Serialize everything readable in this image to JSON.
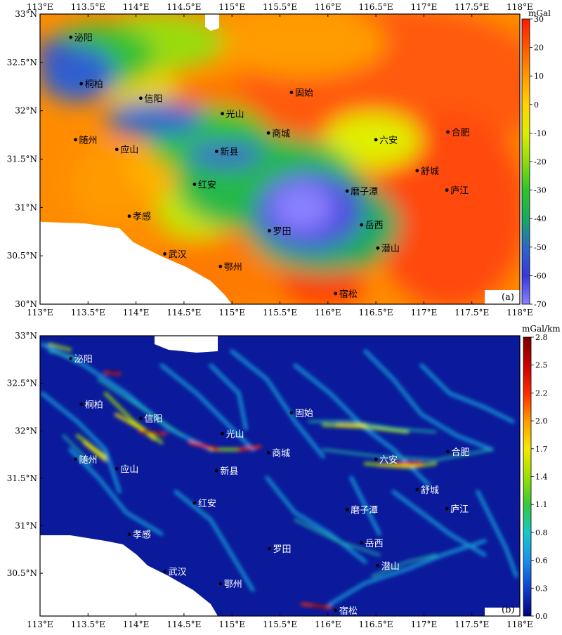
{
  "figure": {
    "panels": [
      {
        "id": "a",
        "panel_label": "(a)",
        "colorbar": {
          "unit": "mGal",
          "ticks": [
            "30",
            "20",
            "10",
            "0",
            "-10",
            "-20",
            "-30",
            "-40",
            "-50",
            "-60",
            "-70"
          ],
          "stops": [
            "#ff1a00",
            "#ff5a00",
            "#ff9a00",
            "#ffd400",
            "#dcef00",
            "#8fdc10",
            "#2fc42a",
            "#19a860",
            "#2d66c8",
            "#3838d8",
            "#8a80ff"
          ]
        },
        "x_ticks": [
          "113°E",
          "113.5°E",
          "114°E",
          "114.5°E",
          "115°E",
          "115.5°E",
          "116°E",
          "116.5°E",
          "117°E",
          "117.5°E",
          "118°E"
        ],
        "y_ticks": [
          "33°N",
          "32.5°N",
          "32°N",
          "31.5°N",
          "31°N",
          "30.5°N",
          "30°N"
        ]
      },
      {
        "id": "b",
        "panel_label": "(b)",
        "colorbar": {
          "unit": "mGal/km",
          "ticks": [
            "2.8",
            "2.5",
            "2.2",
            "2.0",
            "1.7",
            "1.4",
            "1.1",
            "0.8",
            "0.6",
            "0.3",
            "0.0"
          ],
          "stops": [
            "#7a0000",
            "#c80000",
            "#ff2a00",
            "#ff9a00",
            "#f5e800",
            "#9be000",
            "#34c83a",
            "#18c8c8",
            "#1a90e8",
            "#1040d0",
            "#00007a"
          ]
        },
        "x_ticks": [
          "113°E",
          "113.5°E",
          "114°E",
          "114.5°E",
          "115°E",
          "115.5°E",
          "116°E",
          "116.5°E",
          "117°E",
          "117.5°E",
          "118°E"
        ],
        "y_ticks": [
          "33°N",
          "32.5°N",
          "32°N",
          "31.5°N",
          "31°N",
          "30.5°N"
        ]
      }
    ],
    "cities": [
      {
        "name": "泌阳",
        "lon": 113.32,
        "lat": 32.76
      },
      {
        "name": "桐柏",
        "lon": 113.43,
        "lat": 32.28
      },
      {
        "name": "信阳",
        "lon": 114.05,
        "lat": 32.13
      },
      {
        "name": "光山",
        "lon": 114.9,
        "lat": 31.97
      },
      {
        "name": "固始",
        "lon": 115.62,
        "lat": 32.19
      },
      {
        "name": "商城",
        "lon": 115.38,
        "lat": 31.77
      },
      {
        "name": "新县",
        "lon": 114.84,
        "lat": 31.58
      },
      {
        "name": "随州",
        "lon": 113.37,
        "lat": 31.7
      },
      {
        "name": "应山",
        "lon": 113.8,
        "lat": 31.6
      },
      {
        "name": "红安",
        "lon": 114.61,
        "lat": 31.24
      },
      {
        "name": "孝感",
        "lon": 113.93,
        "lat": 30.91
      },
      {
        "name": "武汉",
        "lon": 114.3,
        "lat": 30.52
      },
      {
        "name": "鄂州",
        "lon": 114.88,
        "lat": 30.39
      },
      {
        "name": "罗田",
        "lon": 115.39,
        "lat": 30.76
      },
      {
        "name": "磨子潭",
        "lon": 116.2,
        "lat": 31.17
      },
      {
        "name": "岳西",
        "lon": 116.35,
        "lat": 30.82
      },
      {
        "name": "潜山",
        "lon": 116.52,
        "lat": 30.58
      },
      {
        "name": "宿松",
        "lon": 116.08,
        "lat": 30.11
      },
      {
        "name": "六安",
        "lon": 116.5,
        "lat": 31.7
      },
      {
        "name": "舒城",
        "lon": 116.93,
        "lat": 31.38
      },
      {
        "name": "合肥",
        "lon": 117.25,
        "lat": 31.78
      },
      {
        "name": "庐江",
        "lon": 117.24,
        "lat": 31.18
      }
    ]
  }
}
